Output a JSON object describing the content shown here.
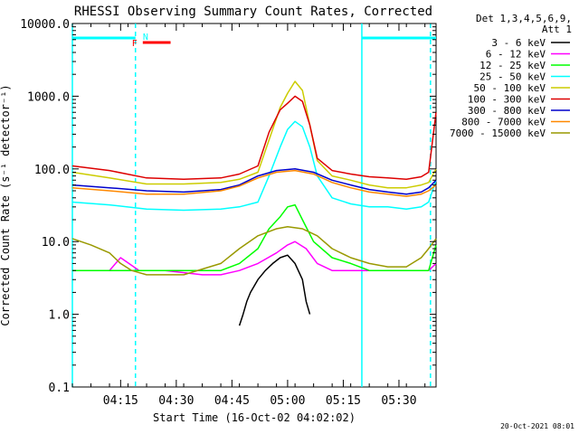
{
  "chart_data": {
    "type": "line",
    "title": "RHESSI Observing Summary Count Rates, Corrected",
    "xlabel": "Start Time (16-Oct-02 04:02:02)",
    "ylabel": "Corrected Count Rate (s⁻¹ detector⁻¹)",
    "yscale": "log",
    "ylim": [
      0.1,
      10000
    ],
    "xlim_minutes_after_0402": [
      0,
      98
    ],
    "x_ticks": [
      {
        "label": "04:15",
        "minute": 13
      },
      {
        "label": "04:30",
        "minute": 28
      },
      {
        "label": "04:45",
        "minute": 43
      },
      {
        "label": "05:00",
        "minute": 58
      },
      {
        "label": "05:15",
        "minute": 73
      },
      {
        "label": "05:30",
        "minute": 88
      }
    ],
    "y_ticks": [
      {
        "label": "0.1",
        "value": 0.1
      },
      {
        "label": "1.0",
        "value": 1
      },
      {
        "label": "10.0",
        "value": 10
      },
      {
        "label": "100.0",
        "value": 100
      },
      {
        "label": "1000.0",
        "value": 1000
      },
      {
        "label": "10000.0",
        "value": 10000
      }
    ],
    "legend_header": [
      "Det 1,3,4,5,6,9,",
      "Att 1"
    ],
    "series": [
      {
        "name": "3 - 6 keV",
        "color": "#000000",
        "x": [
          45,
          46,
          47,
          48,
          50,
          52,
          54,
          56,
          58,
          60,
          62,
          63,
          64
        ],
        "y": [
          0.7,
          1,
          1.5,
          2,
          3,
          4,
          5,
          6,
          6.5,
          5,
          3,
          1.5,
          1
        ]
      },
      {
        "name": "6 - 12 keV",
        "color": "#ff00ff",
        "x": [
          0,
          10,
          13,
          18,
          25,
          35,
          40,
          45,
          50,
          55,
          58,
          60,
          63,
          66,
          70,
          75,
          80,
          88,
          93,
          96,
          98
        ],
        "y": [
          4,
          4,
          6,
          4,
          4,
          3.5,
          3.5,
          4,
          5,
          7,
          9,
          10,
          8,
          5,
          4,
          4,
          4,
          4,
          4,
          4,
          5
        ]
      },
      {
        "name": "12 - 25 keV",
        "color": "#00ff00",
        "x": [
          0,
          10,
          20,
          30,
          40,
          45,
          50,
          53,
          56,
          58,
          60,
          62,
          65,
          70,
          75,
          80,
          85,
          90,
          94,
          96,
          98
        ],
        "y": [
          4,
          4,
          4,
          4,
          4,
          5,
          8,
          15,
          22,
          30,
          32,
          20,
          10,
          6,
          5,
          4,
          4,
          4,
          4,
          4,
          9
        ]
      },
      {
        "name": "25 - 50 keV",
        "color": "#00ffff",
        "x": [
          0,
          10,
          20,
          30,
          40,
          45,
          50,
          53,
          56,
          58,
          60,
          62,
          64,
          66,
          70,
          75,
          80,
          85,
          90,
          94,
          96,
          98
        ],
        "y": [
          35,
          32,
          28,
          27,
          28,
          30,
          35,
          80,
          200,
          350,
          450,
          380,
          200,
          80,
          40,
          33,
          30,
          30,
          28,
          30,
          35,
          70
        ]
      },
      {
        "name": "50 - 100 keV",
        "color": "#cccc00",
        "x": [
          0,
          10,
          20,
          30,
          40,
          45,
          50,
          53,
          56,
          58,
          60,
          62,
          64,
          66,
          70,
          75,
          80,
          85,
          90,
          94,
          96,
          98
        ],
        "y": [
          90,
          75,
          62,
          62,
          65,
          72,
          90,
          250,
          700,
          1100,
          1600,
          1200,
          400,
          130,
          80,
          70,
          60,
          55,
          55,
          60,
          65,
          100
        ]
      },
      {
        "name": "100 - 300 keV",
        "color": "#dd0000",
        "x": [
          0,
          10,
          20,
          30,
          40,
          45,
          50,
          53,
          56,
          58,
          60,
          62,
          64,
          66,
          70,
          75,
          80,
          85,
          90,
          94,
          96,
          98
        ],
        "y": [
          110,
          95,
          75,
          72,
          75,
          85,
          110,
          320,
          650,
          800,
          1000,
          850,
          400,
          140,
          95,
          85,
          78,
          75,
          72,
          78,
          90,
          600
        ]
      },
      {
        "name": "300 - 800 keV",
        "color": "#0000cc",
        "x": [
          0,
          10,
          20,
          30,
          40,
          45,
          50,
          55,
          60,
          65,
          70,
          75,
          80,
          85,
          90,
          94,
          96,
          98
        ],
        "y": [
          60,
          55,
          50,
          48,
          52,
          60,
          80,
          95,
          100,
          90,
          70,
          60,
          52,
          48,
          45,
          48,
          55,
          70
        ]
      },
      {
        "name": "800 - 7000 keV",
        "color": "#ff8800",
        "x": [
          0,
          10,
          20,
          30,
          40,
          45,
          50,
          55,
          60,
          65,
          70,
          75,
          80,
          85,
          90,
          94,
          96,
          98
        ],
        "y": [
          55,
          50,
          45,
          45,
          50,
          58,
          75,
          90,
          95,
          85,
          65,
          55,
          48,
          45,
          42,
          45,
          50,
          60
        ]
      },
      {
        "name": "7000 - 15000 keV",
        "color": "#999900",
        "x": [
          0,
          5,
          10,
          13,
          16,
          20,
          30,
          40,
          45,
          50,
          55,
          58,
          62,
          66,
          70,
          75,
          80,
          85,
          90,
          94,
          96,
          98
        ],
        "y": [
          11,
          9,
          7,
          5,
          4,
          3.5,
          3.5,
          5,
          8,
          12,
          15,
          16,
          15,
          12,
          8,
          6,
          5,
          4.5,
          4.5,
          6,
          8,
          11
        ]
      }
    ],
    "annotations": {
      "night_bars_top": [
        {
          "start_minute": 0,
          "end_minute": 17,
          "color": "#00ffff"
        },
        {
          "start_minute": 78,
          "end_minute": 98,
          "color": "#00ffff"
        }
      ],
      "flag_bars": [
        {
          "label": "N",
          "start_minute": 18,
          "end_minute": 18,
          "color": "#00ffff"
        },
        {
          "label": "F",
          "start_minute": 18,
          "end_minute": 25,
          "color": "#ff0000"
        }
      ],
      "vertical_lines": [
        {
          "minute": 0,
          "style": "solid",
          "color": "#00ffff"
        },
        {
          "minute": 17,
          "style": "dashed",
          "color": "#00ffff"
        },
        {
          "minute": 78,
          "style": "solid",
          "color": "#00ffff"
        },
        {
          "minute": 96.5,
          "style": "dashed",
          "color": "#00ffff"
        }
      ]
    },
    "timestamp": "20-Oct-2021 08:01"
  }
}
